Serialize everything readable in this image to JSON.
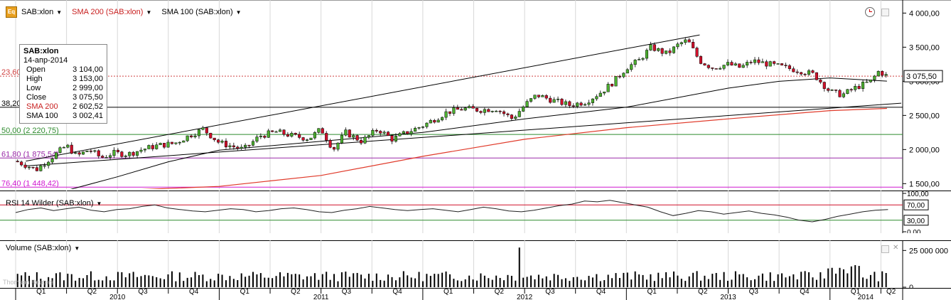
{
  "header": {
    "symbol": "SAB:xlon",
    "sma200_label": "SMA 200 (SAB:xlon)",
    "sma100_label": "SMA 100 (SAB:xlon)",
    "eq_icon_text": "Eq"
  },
  "tooltip": {
    "title": "SAB:xlon",
    "date": "14-апр-2014",
    "rows": [
      {
        "label": "Open",
        "value": "3 104,00"
      },
      {
        "label": "High",
        "value": "3 153,00"
      },
      {
        "label": "Low",
        "value": "2 999,00"
      },
      {
        "label": "Close",
        "value": "3 075,50"
      },
      {
        "label": "SMA 200",
        "value": "2 602,52"
      },
      {
        "label": "SMA 100",
        "value": "3 002,41"
      }
    ]
  },
  "rsi": {
    "label": "RSI 14 Wilder (SAB:xlon)"
  },
  "volume": {
    "label": "Volume (SAB:xlon)"
  },
  "colors": {
    "up": "#4caf2f",
    "down": "#d0102a",
    "sma200": "#e03a2a",
    "sma100": "#000000",
    "fib_green": "#2e8b2e",
    "fib_purple": "#9a2aa8",
    "fib_magenta": "#d018d0",
    "fib_red_dotted": "#d04040"
  },
  "chart_data": [
    {
      "type": "candlestick",
      "title": "SAB:xlon",
      "y_axis_labels": [
        "4 000,00",
        "3 500,00",
        "3 000,00",
        "2 500,00",
        "2 000,00",
        "1 500,00"
      ],
      "ylim": [
        1420,
        4150
      ],
      "scale": "linear",
      "last_price_label": "3 075,50",
      "fib_levels": [
        {
          "label": "23,60",
          "value": 3075,
          "color": "fib_red_dotted",
          "style": "dotted"
        },
        {
          "label": "38,20",
          "value": 2620,
          "color": "sma100",
          "style": "solid"
        },
        {
          "label": "50,00 (2 220,75)",
          "value": 2220.75,
          "color": "fib_green",
          "style": "solid"
        },
        {
          "label": "61,80 (1 875,54)",
          "value": 1875.54,
          "color": "fib_purple",
          "style": "solid"
        },
        {
          "label": "76,40 (1 448,42)",
          "value": 1448.42,
          "color": "fib_magenta",
          "style": "solid"
        }
      ],
      "price_path": [
        [
          2010.0,
          1830
        ],
        [
          2010.06,
          1760
        ],
        [
          2010.1,
          1700
        ],
        [
          2010.14,
          1800
        ],
        [
          2010.2,
          1940
        ],
        [
          2010.25,
          2060
        ],
        [
          2010.3,
          1900
        ],
        [
          2010.36,
          2000
        ],
        [
          2010.42,
          1880
        ],
        [
          2010.48,
          1950
        ],
        [
          2010.55,
          1930
        ],
        [
          2010.62,
          2000
        ],
        [
          2010.7,
          2060
        ],
        [
          2010.78,
          2090
        ],
        [
          2010.85,
          2200
        ],
        [
          2010.92,
          2300
        ],
        [
          2011.0,
          2100
        ],
        [
          2011.06,
          2050
        ],
        [
          2011.12,
          2000
        ],
        [
          2011.2,
          2200
        ],
        [
          2011.28,
          2260
        ],
        [
          2011.36,
          2200
        ],
        [
          2011.44,
          2160
        ],
        [
          2011.5,
          2300
        ],
        [
          2011.56,
          2000
        ],
        [
          2011.62,
          2250
        ],
        [
          2011.7,
          2120
        ],
        [
          2011.78,
          2300
        ],
        [
          2011.85,
          2150
        ],
        [
          2011.92,
          2250
        ],
        [
          2012.0,
          2350
        ],
        [
          2012.06,
          2450
        ],
        [
          2012.12,
          2550
        ],
        [
          2012.2,
          2600
        ],
        [
          2012.28,
          2580
        ],
        [
          2012.36,
          2600
        ],
        [
          2012.44,
          2450
        ],
        [
          2012.5,
          2650
        ],
        [
          2012.56,
          2800
        ],
        [
          2012.64,
          2720
        ],
        [
          2012.72,
          2650
        ],
        [
          2012.8,
          2700
        ],
        [
          2012.88,
          2850
        ],
        [
          2012.94,
          3000
        ],
        [
          2013.0,
          3200
        ],
        [
          2013.06,
          3300
        ],
        [
          2013.12,
          3500
        ],
        [
          2013.2,
          3400
        ],
        [
          2013.26,
          3550
        ],
        [
          2013.3,
          3600
        ],
        [
          2013.36,
          3300
        ],
        [
          2013.42,
          3200
        ],
        [
          2013.5,
          3250
        ],
        [
          2013.56,
          3200
        ],
        [
          2013.62,
          3300
        ],
        [
          2013.7,
          3250
        ],
        [
          2013.78,
          3200
        ],
        [
          2013.86,
          3150
        ],
        [
          2013.92,
          3100
        ],
        [
          2014.0,
          2850
        ],
        [
          2014.06,
          2800
        ],
        [
          2014.12,
          2900
        ],
        [
          2014.2,
          3000
        ],
        [
          2014.24,
          3150
        ],
        [
          2014.28,
          3075
        ]
      ],
      "sma200_path": [
        [
          2010.0,
          1380
        ],
        [
          2010.5,
          1400
        ],
        [
          2011.0,
          1460
        ],
        [
          2011.5,
          1620
        ],
        [
          2012.0,
          1900
        ],
        [
          2012.5,
          2150
        ],
        [
          2013.0,
          2320
        ],
        [
          2013.5,
          2450
        ],
        [
          2014.0,
          2570
        ],
        [
          2014.28,
          2602.52
        ]
      ],
      "sma100_path": [
        [
          2010.0,
          1350
        ],
        [
          2010.25,
          1400
        ],
        [
          2010.5,
          1600
        ],
        [
          2010.75,
          1820
        ],
        [
          2011.0,
          1990
        ],
        [
          2011.5,
          2120
        ],
        [
          2012.0,
          2250
        ],
        [
          2012.5,
          2450
        ],
        [
          2013.0,
          2620
        ],
        [
          2013.5,
          2900
        ],
        [
          2013.75,
          3000
        ],
        [
          2014.0,
          3050
        ],
        [
          2014.28,
          3002.41
        ]
      ],
      "trendlines": [
        {
          "from": [
            2010.05,
            1760
          ],
          "to": [
            2014.35,
            2680
          ]
        },
        {
          "from": [
            2010.05,
            1830
          ],
          "to": [
            2013.36,
            3680
          ]
        }
      ]
    },
    {
      "type": "line",
      "title": "RSI 14 Wilder (SAB:xlon)",
      "y_axis_labels": [
        "100,00",
        "70,00",
        "30,00",
        "0,00"
      ],
      "ylim": [
        0,
        100
      ],
      "levels": [
        70,
        30
      ],
      "values": [
        50,
        58,
        62,
        55,
        60,
        64,
        56,
        52,
        58,
        60,
        66,
        70,
        62,
        58,
        54,
        52,
        56,
        60,
        58,
        52,
        55,
        60,
        62,
        58,
        52,
        50,
        56,
        60,
        66,
        62,
        58,
        55,
        58,
        60,
        56,
        52,
        58,
        64,
        60,
        54,
        52,
        56,
        62,
        68,
        72,
        80,
        78,
        82,
        76,
        70,
        64,
        52,
        42,
        48,
        55,
        52,
        46,
        50,
        54,
        48,
        44,
        38,
        30,
        26,
        32,
        40,
        46,
        52,
        56,
        58
      ]
    },
    {
      "type": "bar",
      "title": "Volume (SAB:xlon)",
      "y_axis_labels": [
        "25 000 000",
        "0"
      ],
      "ylim": [
        0,
        30000000
      ]
    }
  ],
  "time_axis": {
    "quarters": [
      "Q1",
      "Q2",
      "Q3",
      "Q4",
      "Q1",
      "Q2",
      "Q3",
      "Q4",
      "Q1",
      "Q2",
      "Q3",
      "Q4",
      "Q1",
      "Q2",
      "Q3",
      "Q4",
      "Q1",
      "Q2"
    ],
    "years": [
      "2010",
      "2011",
      "2012",
      "2013",
      "2014"
    ],
    "watermark": "Thomson Reuters"
  }
}
